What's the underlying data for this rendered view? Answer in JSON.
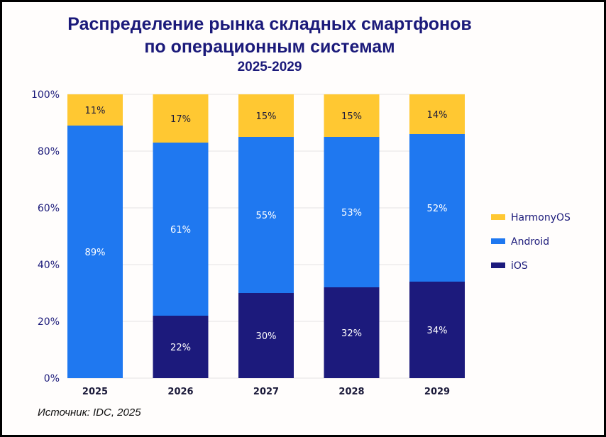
{
  "chart_data": {
    "type": "bar",
    "stacked": true,
    "title": "Распределение рынка складных смартфонов",
    "title_line2": "по операционным системам",
    "subtitle": "2025-2029",
    "categories": [
      "2025",
      "2026",
      "2027",
      "2028",
      "2029"
    ],
    "series": [
      {
        "name": "iOS",
        "color": "#1c1a7c",
        "values": [
          0,
          22,
          30,
          32,
          34
        ],
        "labels": [
          "",
          "22%",
          "30%",
          "32%",
          "34%"
        ]
      },
      {
        "name": "Android",
        "color": "#1f78f0",
        "values": [
          89,
          61,
          55,
          53,
          52
        ],
        "labels": [
          "89%",
          "61%",
          "55%",
          "53%",
          "52%"
        ]
      },
      {
        "name": "HarmonyOS",
        "color": "#ffc832",
        "values": [
          11,
          17,
          15,
          15,
          14
        ],
        "labels": [
          "11%",
          "17%",
          "15%",
          "15%",
          "14%"
        ]
      }
    ],
    "yticks": [
      "0%",
      "20%",
      "40%",
      "60%",
      "80%",
      "100%"
    ],
    "ylim": [
      0,
      100
    ],
    "grid": true,
    "legend_placement": "right",
    "legend_order": [
      "HarmonyOS",
      "Android",
      "iOS"
    ],
    "source": "Источник: IDC, 2025"
  }
}
